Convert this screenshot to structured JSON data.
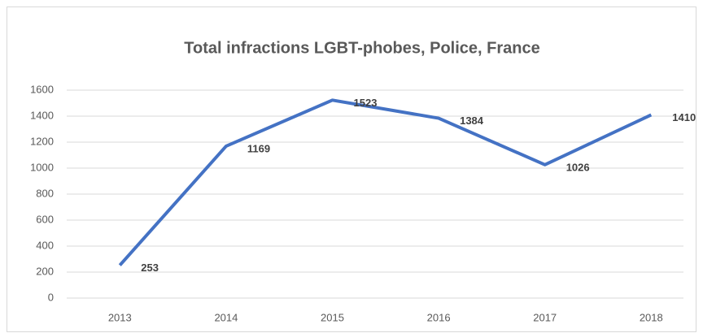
{
  "chart_data": {
    "type": "line",
    "title": "Total infractions LGBT-phobes, Police, France",
    "categories": [
      "2013",
      "2014",
      "2015",
      "2016",
      "2017",
      "2018"
    ],
    "series": [
      {
        "name": "Total infractions",
        "color": "#4472c4",
        "values": [
          253,
          1169,
          1523,
          1384,
          1026,
          1410
        ]
      }
    ],
    "ylim": [
      0,
      1600
    ],
    "yticks": [
      0,
      200,
      400,
      600,
      800,
      1000,
      1200,
      1400,
      1600
    ],
    "grid": true,
    "data_labels": true
  }
}
